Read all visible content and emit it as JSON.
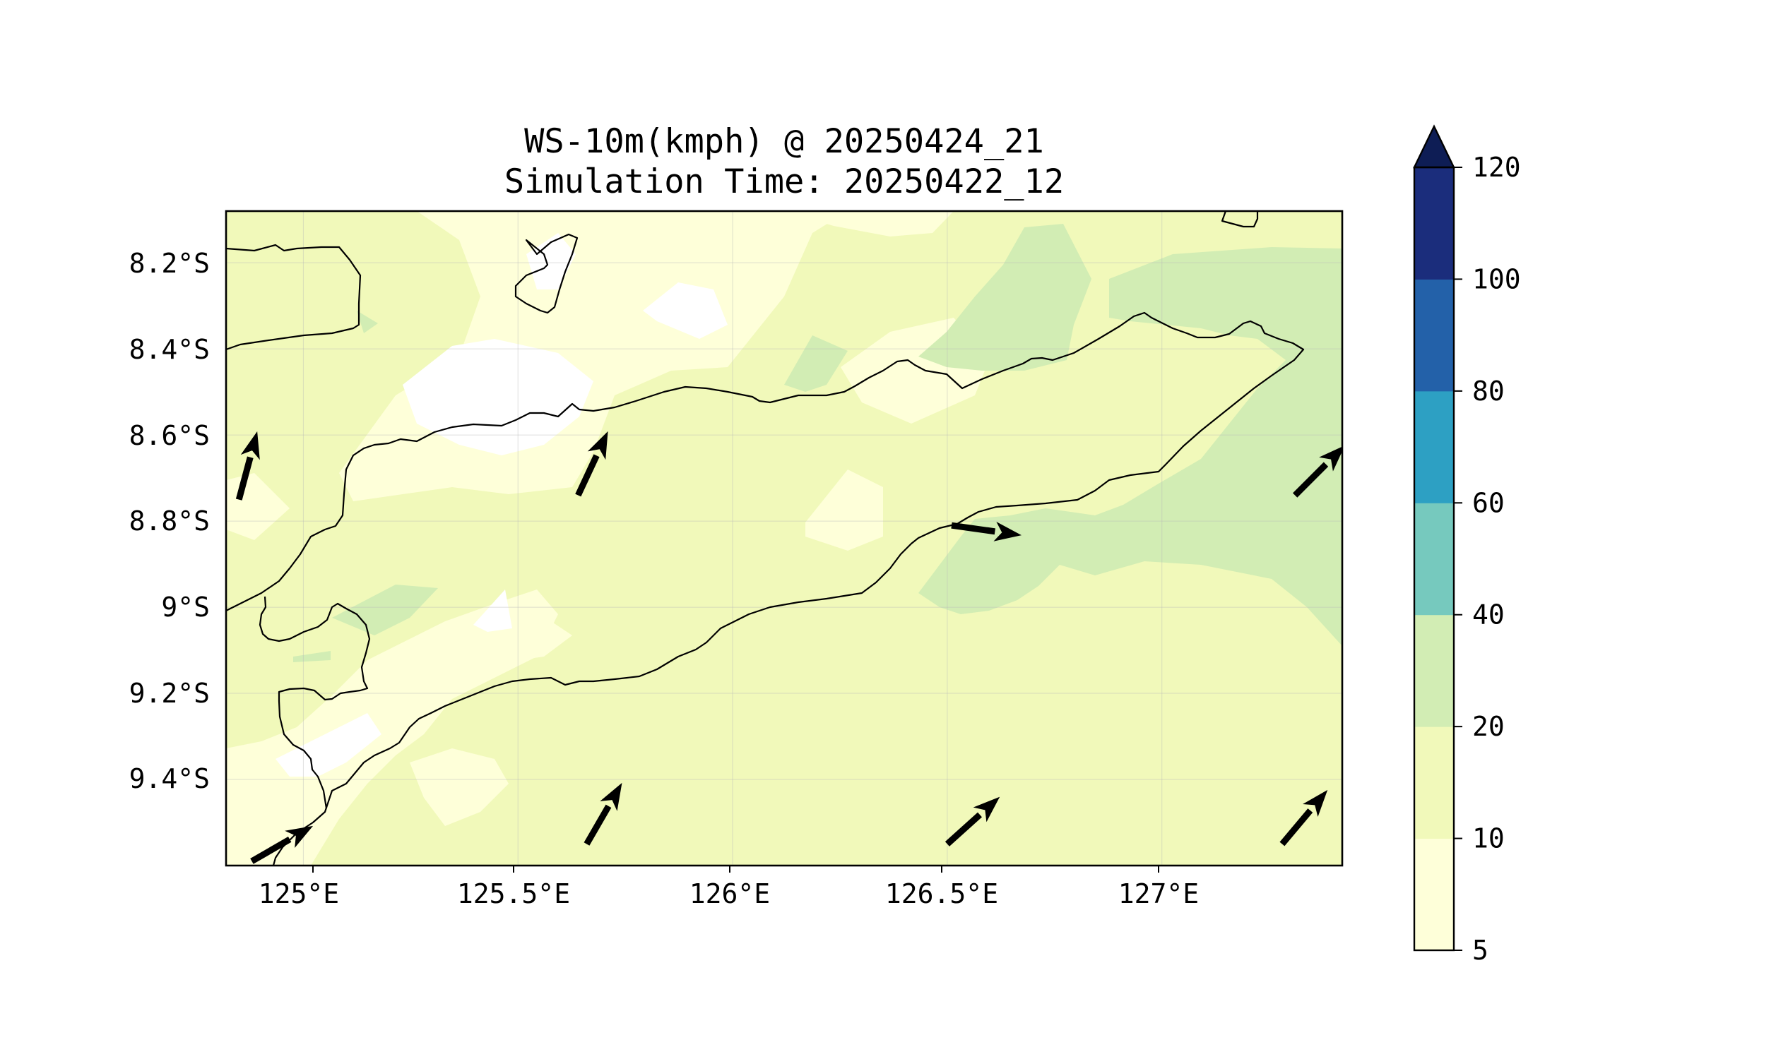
{
  "map": {
    "title_line1": "WS-10m(kmph) @ 20250424_21",
    "title_line2": "Simulation Time: 20250422_12",
    "lon_ticks": [
      "125°E",
      "125.5°E",
      "126°E",
      "126.5°E",
      "127°E"
    ],
    "lat_ticks": [
      "8.2°S",
      "8.4°S",
      "8.6°S",
      "8.8°S",
      "9°S",
      "9.2°S",
      "9.4°S"
    ],
    "extent": {
      "lon": [
        124.82,
        127.42
      ],
      "lat": [
        -9.6,
        -8.08
      ]
    },
    "level_colors": {
      "below_5": "#ffffff",
      "5_10": "#feffd9",
      "10_20": "#f1f9ba",
      "20_40": "#d2edb4",
      "40_60": "#76c9be",
      "60_80": "#2da0c3",
      "80_100": "#2361a9",
      "100_120": "#1b2d7c",
      "above_120": "#0e1d55"
    },
    "wind_vectors": [
      {
        "lon": 125.64,
        "lat": -8.74,
        "dir_deg": 25
      },
      {
        "lon": 125.66,
        "lat": -9.55,
        "dir_deg": 30
      },
      {
        "lon": 126.51,
        "lat": -8.81,
        "dir_deg": 98
      },
      {
        "lon": 126.5,
        "lat": -9.55,
        "dir_deg": 48
      },
      {
        "lon": 127.31,
        "lat": -8.74,
        "dir_deg": 45
      },
      {
        "lon": 127.28,
        "lat": -9.55,
        "dir_deg": 40
      },
      {
        "lon": 124.85,
        "lat": -8.75,
        "dir_deg": 15
      },
      {
        "lon": 124.88,
        "lat": -9.59,
        "dir_deg": 60
      }
    ]
  },
  "colorbar": {
    "tick_labels": [
      "5",
      "10",
      "20",
      "40",
      "60",
      "80",
      "100",
      "120"
    ],
    "colors": [
      "#feffd9",
      "#f1f9ba",
      "#d2edb4",
      "#76c9be",
      "#2da0c3",
      "#2361a9",
      "#1b2d7c"
    ],
    "extend_color": "#0e1d55"
  }
}
